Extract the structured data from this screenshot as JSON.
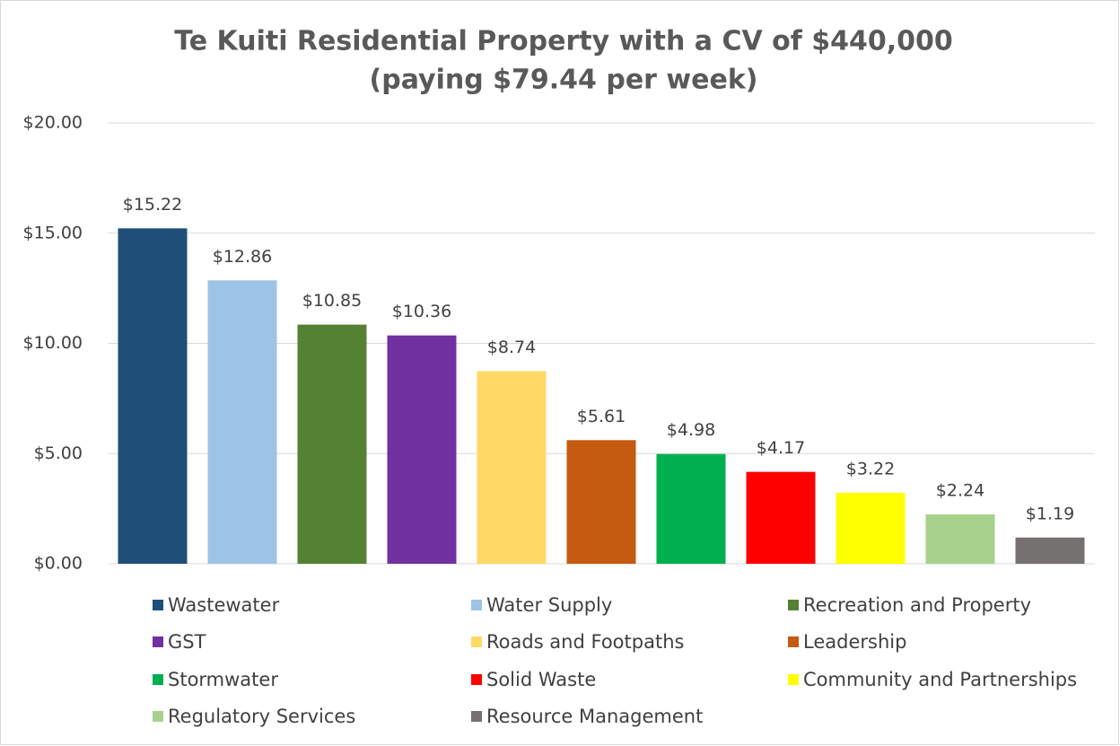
{
  "chart_data": {
    "type": "bar",
    "title": [
      "Te Kuiti Residential Property with a CV of $440,000",
      "(paying $79.44 per week)"
    ],
    "ylim": [
      0,
      20
    ],
    "yticks": [
      {
        "value": 0,
        "label": "$0.00"
      },
      {
        "value": 5,
        "label": "$5.00"
      },
      {
        "value": 10,
        "label": "$10.00"
      },
      {
        "value": 15,
        "label": "$15.00"
      },
      {
        "value": 20,
        "label": "$20.00"
      }
    ],
    "grid": true,
    "legend": "bottom",
    "series": [
      {
        "name": "Wastewater",
        "color": "#1f4e79",
        "values": [
          15.22
        ],
        "value_labels": [
          "$15.22"
        ]
      },
      {
        "name": "Water Supply",
        "color": "#9dc3e6",
        "values": [
          12.86
        ],
        "value_labels": [
          "$12.86"
        ]
      },
      {
        "name": "Recreation and Property",
        "color": "#548235",
        "values": [
          10.85
        ],
        "value_labels": [
          "$10.85"
        ]
      },
      {
        "name": "GST",
        "color": "#7030a0",
        "values": [
          10.36
        ],
        "value_labels": [
          "$10.36"
        ]
      },
      {
        "name": "Roads and Footpaths",
        "color": "#ffd966",
        "values": [
          8.74
        ],
        "value_labels": [
          "$8.74"
        ]
      },
      {
        "name": "Leadership",
        "color": "#c55a11",
        "values": [
          5.61
        ],
        "value_labels": [
          "$5.61"
        ]
      },
      {
        "name": "Stormwater",
        "color": "#00b050",
        "values": [
          4.98
        ],
        "value_labels": [
          "$4.98"
        ]
      },
      {
        "name": "Solid Waste",
        "color": "#ff0000",
        "values": [
          4.17
        ],
        "value_labels": [
          "$4.17"
        ]
      },
      {
        "name": "Community and Partnerships",
        "color": "#ffff00",
        "values": [
          3.22
        ],
        "value_labels": [
          "$3.22"
        ]
      },
      {
        "name": "Regulatory Services",
        "color": "#a9d18e",
        "values": [
          2.24
        ],
        "value_labels": [
          "$2.24"
        ]
      },
      {
        "name": "Resource Management",
        "color": "#767171",
        "values": [
          1.19
        ],
        "value_labels": [
          "$1.19"
        ]
      }
    ]
  }
}
